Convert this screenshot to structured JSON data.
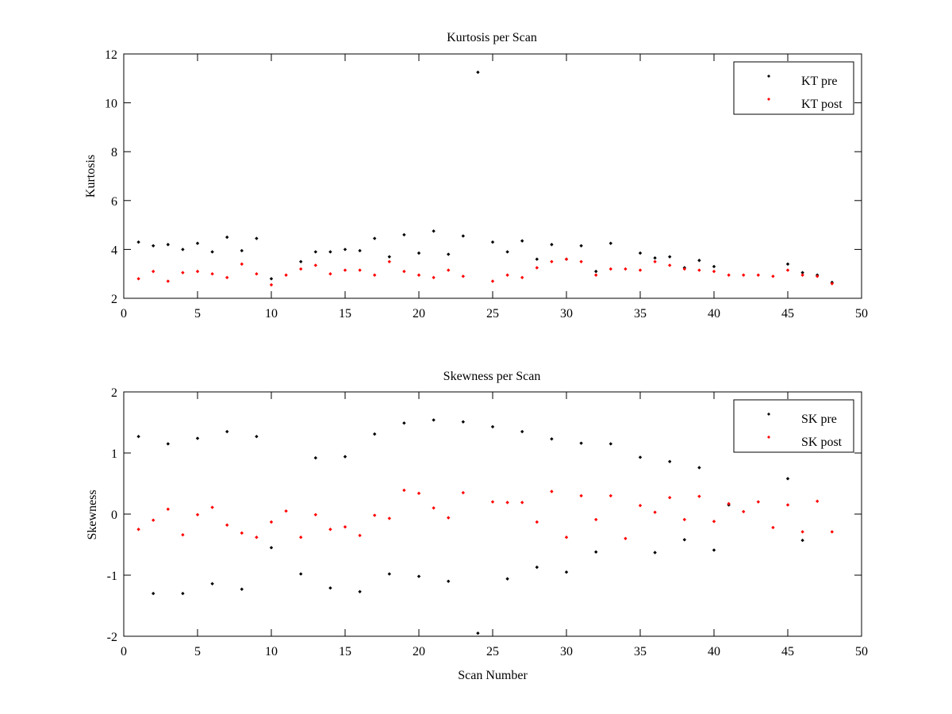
{
  "colors": {
    "pre": "#000000",
    "post": "#ff0000",
    "axes": "#000000",
    "background": "#ffffff"
  },
  "chart_data": [
    {
      "type": "scatter",
      "title": "Kurtosis per Scan",
      "xlabel": "",
      "ylabel": "Kurtosis",
      "xlim": [
        0,
        50
      ],
      "ylim": [
        2,
        12
      ],
      "xticks": [
        0,
        5,
        10,
        15,
        20,
        25,
        30,
        35,
        40,
        45,
        50
      ],
      "yticks": [
        2,
        4,
        6,
        8,
        10,
        12
      ],
      "grid": false,
      "legend_position": "top-right",
      "series": [
        {
          "name": "KT pre",
          "color": "#000000",
          "x": [
            1,
            2,
            3,
            4,
            5,
            6,
            7,
            8,
            9,
            10,
            12,
            13,
            14,
            15,
            16,
            17,
            18,
            19,
            20,
            21,
            22,
            23,
            24,
            25,
            26,
            27,
            28,
            29,
            30,
            31,
            32,
            33,
            35,
            36,
            37,
            38,
            39,
            40,
            45,
            46,
            47,
            48
          ],
          "y": [
            4.3,
            4.15,
            4.2,
            4.0,
            4.25,
            3.9,
            4.5,
            3.95,
            4.45,
            2.8,
            3.5,
            3.9,
            3.9,
            4.0,
            3.95,
            4.45,
            3.7,
            4.6,
            3.85,
            4.75,
            3.8,
            4.55,
            11.25,
            4.3,
            3.9,
            4.35,
            3.6,
            4.2,
            3.6,
            4.15,
            3.1,
            4.25,
            3.85,
            3.65,
            3.7,
            3.25,
            3.55,
            3.3,
            3.4,
            3.05,
            2.95,
            2.65
          ]
        },
        {
          "name": "KT post",
          "color": "#ff0000",
          "x": [
            1,
            2,
            3,
            4,
            5,
            6,
            7,
            8,
            9,
            10,
            11,
            12,
            13,
            14,
            15,
            16,
            17,
            18,
            19,
            20,
            21,
            22,
            23,
            25,
            26,
            27,
            28,
            29,
            30,
            31,
            32,
            33,
            34,
            35,
            36,
            37,
            38,
            39,
            40,
            41,
            42,
            43,
            44,
            45,
            46,
            47,
            48
          ],
          "y": [
            2.8,
            3.1,
            2.7,
            3.05,
            3.1,
            3.0,
            2.85,
            3.4,
            3.0,
            2.55,
            2.95,
            3.2,
            3.35,
            3.0,
            3.15,
            3.15,
            2.95,
            3.5,
            3.1,
            2.95,
            2.85,
            3.15,
            2.9,
            2.7,
            2.95,
            2.85,
            3.25,
            3.5,
            3.6,
            3.5,
            2.95,
            3.2,
            3.2,
            3.15,
            3.5,
            3.35,
            3.2,
            3.15,
            3.1,
            2.95,
            2.95,
            2.95,
            2.9,
            3.15,
            2.95,
            2.9,
            2.6
          ]
        }
      ]
    },
    {
      "type": "scatter",
      "title": "Skewness per Scan",
      "xlabel": "Scan Number",
      "ylabel": "Skewness",
      "xlim": [
        0,
        50
      ],
      "ylim": [
        -2,
        2
      ],
      "xticks": [
        0,
        5,
        10,
        15,
        20,
        25,
        30,
        35,
        40,
        45,
        50
      ],
      "yticks": [
        -2,
        -1,
        0,
        1,
        2
      ],
      "grid": false,
      "legend_position": "top-right",
      "series": [
        {
          "name": "SK pre",
          "color": "#000000",
          "x": [
            1,
            2,
            3,
            4,
            5,
            6,
            7,
            8,
            9,
            10,
            12,
            13,
            14,
            15,
            16,
            17,
            18,
            19,
            20,
            21,
            22,
            23,
            24,
            25,
            26,
            27,
            28,
            29,
            30,
            31,
            32,
            33,
            35,
            36,
            37,
            38,
            39,
            40,
            41,
            45,
            46
          ],
          "y": [
            1.27,
            -1.3,
            1.15,
            -1.3,
            1.24,
            -1.14,
            1.35,
            -1.23,
            1.27,
            -0.55,
            -0.98,
            0.92,
            -1.21,
            0.94,
            -1.27,
            1.31,
            -0.98,
            1.49,
            -1.02,
            1.54,
            -1.1,
            1.51,
            -1.95,
            1.43,
            -1.06,
            1.35,
            -0.87,
            1.23,
            -0.95,
            1.16,
            -0.62,
            1.15,
            0.93,
            -0.63,
            0.86,
            -0.42,
            0.76,
            -0.59,
            0.15,
            0.58,
            -0.43
          ]
        },
        {
          "name": "SK post",
          "color": "#ff0000",
          "x": [
            1,
            2,
            3,
            4,
            5,
            6,
            7,
            8,
            9,
            10,
            11,
            12,
            13,
            14,
            15,
            16,
            17,
            18,
            19,
            20,
            21,
            22,
            23,
            25,
            26,
            27,
            28,
            29,
            30,
            31,
            32,
            33,
            34,
            35,
            36,
            37,
            38,
            39,
            40,
            41,
            42,
            43,
            44,
            45,
            46,
            47,
            48
          ],
          "y": [
            -0.25,
            -0.1,
            0.08,
            -0.34,
            -0.01,
            0.11,
            -0.18,
            -0.31,
            -0.38,
            -0.13,
            0.05,
            -0.38,
            -0.01,
            -0.25,
            -0.21,
            -0.35,
            -0.02,
            -0.07,
            0.39,
            0.34,
            0.1,
            -0.06,
            0.35,
            0.2,
            0.19,
            0.19,
            -0.13,
            0.37,
            -0.38,
            0.3,
            -0.09,
            0.3,
            -0.4,
            0.14,
            0.03,
            0.27,
            -0.09,
            0.29,
            -0.12,
            0.17,
            0.04,
            0.2,
            -0.22,
            0.15,
            -0.29,
            0.21,
            -0.29
          ]
        }
      ]
    }
  ]
}
